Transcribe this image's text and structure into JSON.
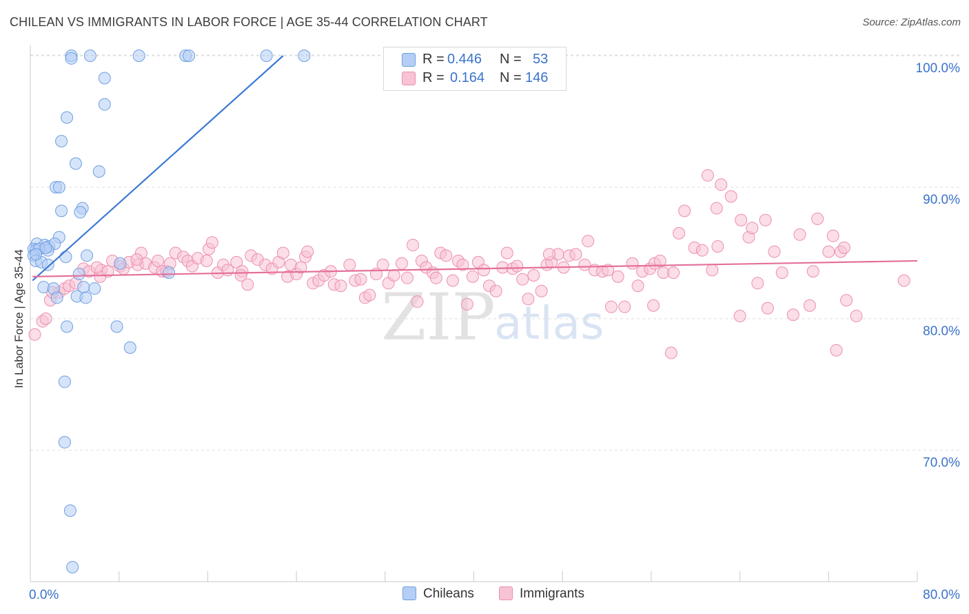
{
  "title": "CHILEAN VS IMMIGRANTS IN LABOR FORCE | AGE 35-44 CORRELATION CHART",
  "source": "Source: ZipAtlas.com",
  "watermark": {
    "zip": "ZIP",
    "atlas": "atlas"
  },
  "legend": {
    "rows": [
      {
        "r_label": "R =",
        "r_value": "0.446",
        "n_label": "N =",
        "n_value": "53",
        "color": "#b4cef5",
        "border": "#6f9ee0"
      },
      {
        "r_label": "R =",
        "r_value": "0.164",
        "n_label": "N =",
        "n_value": "146",
        "color": "#f8c3d4",
        "border": "#ec8eaf"
      }
    ]
  },
  "bottom_legend": [
    {
      "label": "Chileans",
      "color": "#b4cef5",
      "border": "#6f9ee0"
    },
    {
      "label": "Immigrants",
      "color": "#f8c3d4",
      "border": "#ec8eaf"
    }
  ],
  "chart_data": {
    "type": "scatter",
    "title": "CHILEAN VS IMMIGRANTS IN LABOR FORCE | AGE 35-44 CORRELATION CHART",
    "xlabel": "",
    "ylabel": "In Labor Force | Age 35-44",
    "xlim": [
      0,
      80
    ],
    "ylim": [
      60.5,
      101.5
    ],
    "x_tick_labels": [
      {
        "value": 0,
        "label": "0.0%"
      },
      {
        "value": 80,
        "label": "80.0%"
      }
    ],
    "y_tick_labels": [
      {
        "value": 100,
        "label": "100.0%"
      },
      {
        "value": 90,
        "label": "90.0%"
      },
      {
        "value": 80,
        "label": "80.0%"
      },
      {
        "value": 70,
        "label": "70.0%"
      }
    ],
    "x_minor_ticks": [
      0,
      8,
      16,
      24,
      32,
      40,
      48,
      56,
      64,
      72,
      80
    ],
    "grid": true,
    "series": [
      {
        "name": "Chileans",
        "color": "#6f9ee0",
        "fill": "#b4cef5",
        "trendline": {
          "x": [
            0.2,
            22.8
          ],
          "y": [
            82.9,
            100.0
          ],
          "color": "#3a78d4"
        },
        "points": [
          [
            3.7,
            100.0
          ],
          [
            5.4,
            100.0
          ],
          [
            9.8,
            100.0
          ],
          [
            14.0,
            100.0
          ],
          [
            14.3,
            100.0
          ],
          [
            21.3,
            100.0
          ],
          [
            24.7,
            100.0
          ],
          [
            3.7,
            99.8
          ],
          [
            6.7,
            98.3
          ],
          [
            6.7,
            96.3
          ],
          [
            3.3,
            95.3
          ],
          [
            2.8,
            93.5
          ],
          [
            4.1,
            91.8
          ],
          [
            6.2,
            91.2
          ],
          [
            2.3,
            90.0
          ],
          [
            2.6,
            90.0
          ],
          [
            4.7,
            88.4
          ],
          [
            2.8,
            88.2
          ],
          [
            4.5,
            88.1
          ],
          [
            2.6,
            86.2
          ],
          [
            0.6,
            85.7
          ],
          [
            1.3,
            85.6
          ],
          [
            1.7,
            85.5
          ],
          [
            2.2,
            85.7
          ],
          [
            0.3,
            85.3
          ],
          [
            0.5,
            85.2
          ],
          [
            1.6,
            85.2
          ],
          [
            0.8,
            85.3
          ],
          [
            1.4,
            85.4
          ],
          [
            0.3,
            84.8
          ],
          [
            3.2,
            84.7
          ],
          [
            5.1,
            84.8
          ],
          [
            0.5,
            84.4
          ],
          [
            1.0,
            84.3
          ],
          [
            1.6,
            84.1
          ],
          [
            8.1,
            84.2
          ],
          [
            4.4,
            83.4
          ],
          [
            12.5,
            83.5
          ],
          [
            1.2,
            82.4
          ],
          [
            2.1,
            82.3
          ],
          [
            4.8,
            82.4
          ],
          [
            5.8,
            82.3
          ],
          [
            2.4,
            81.6
          ],
          [
            4.2,
            81.7
          ],
          [
            5.0,
            81.6
          ],
          [
            3.3,
            79.4
          ],
          [
            7.8,
            79.4
          ],
          [
            9.0,
            77.8
          ],
          [
            3.1,
            75.2
          ],
          [
            3.1,
            70.6
          ],
          [
            3.6,
            65.4
          ],
          [
            3.8,
            61.1
          ],
          [
            0.5,
            84.9
          ]
        ]
      },
      {
        "name": "Immigrants",
        "color": "#ec8eaf",
        "fill": "#f8c3d4",
        "trendline": {
          "x": [
            0.2,
            80
          ],
          "y": [
            83.2,
            84.4
          ],
          "color": "#e46f9b"
        },
        "points": [
          [
            0.4,
            78.8
          ],
          [
            1.1,
            79.8
          ],
          [
            1.4,
            80.0
          ],
          [
            1.8,
            81.4
          ],
          [
            2.6,
            82.0
          ],
          [
            3.1,
            82.3
          ],
          [
            3.5,
            82.5
          ],
          [
            4.1,
            82.7
          ],
          [
            4.8,
            83.8
          ],
          [
            5.3,
            83.6
          ],
          [
            6.3,
            83.2
          ],
          [
            6.4,
            83.7
          ],
          [
            7.0,
            83.6
          ],
          [
            7.4,
            84.4
          ],
          [
            8.1,
            84.0
          ],
          [
            8.4,
            83.8
          ],
          [
            8.9,
            84.3
          ],
          [
            9.7,
            84.1
          ],
          [
            10.0,
            85.0
          ],
          [
            10.4,
            84.2
          ],
          [
            11.2,
            83.9
          ],
          [
            11.5,
            84.4
          ],
          [
            11.9,
            83.6
          ],
          [
            12.3,
            83.6
          ],
          [
            12.6,
            84.2
          ],
          [
            13.1,
            85.0
          ],
          [
            13.8,
            84.7
          ],
          [
            14.2,
            84.4
          ],
          [
            14.6,
            84.0
          ],
          [
            15.1,
            84.6
          ],
          [
            15.9,
            84.4
          ],
          [
            16.1,
            85.3
          ],
          [
            16.4,
            85.8
          ],
          [
            16.9,
            83.5
          ],
          [
            17.4,
            84.1
          ],
          [
            17.8,
            83.7
          ],
          [
            18.6,
            84.3
          ],
          [
            19.1,
            83.6
          ],
          [
            19.6,
            82.6
          ],
          [
            19.9,
            84.8
          ],
          [
            20.5,
            84.5
          ],
          [
            21.2,
            84.1
          ],
          [
            21.8,
            83.8
          ],
          [
            22.4,
            84.3
          ],
          [
            22.8,
            85.0
          ],
          [
            23.2,
            83.2
          ],
          [
            23.5,
            84.1
          ],
          [
            24.0,
            83.4
          ],
          [
            24.4,
            83.9
          ],
          [
            24.8,
            84.7
          ],
          [
            25.5,
            82.7
          ],
          [
            26.0,
            82.9
          ],
          [
            26.5,
            83.3
          ],
          [
            27.1,
            83.6
          ],
          [
            27.4,
            82.6
          ],
          [
            28.0,
            82.5
          ],
          [
            28.8,
            84.1
          ],
          [
            29.3,
            82.9
          ],
          [
            29.8,
            83.0
          ],
          [
            30.2,
            81.6
          ],
          [
            30.6,
            81.8
          ],
          [
            31.2,
            83.4
          ],
          [
            31.8,
            84.1
          ],
          [
            32.3,
            82.7
          ],
          [
            32.8,
            83.3
          ],
          [
            33.5,
            84.2
          ],
          [
            34.0,
            83.1
          ],
          [
            34.5,
            85.6
          ],
          [
            34.9,
            81.3
          ],
          [
            35.3,
            84.4
          ],
          [
            35.7,
            83.9
          ],
          [
            36.3,
            83.5
          ],
          [
            37.0,
            85.0
          ],
          [
            37.5,
            84.8
          ],
          [
            38.1,
            82.9
          ],
          [
            38.6,
            84.4
          ],
          [
            39.0,
            84.1
          ],
          [
            39.4,
            81.1
          ],
          [
            39.9,
            83.2
          ],
          [
            40.4,
            84.3
          ],
          [
            40.9,
            83.7
          ],
          [
            41.4,
            82.5
          ],
          [
            42.0,
            82.1
          ],
          [
            42.6,
            83.9
          ],
          [
            43.0,
            85.0
          ],
          [
            43.5,
            83.8
          ],
          [
            43.9,
            84.0
          ],
          [
            44.4,
            83.0
          ],
          [
            44.9,
            81.5
          ],
          [
            45.4,
            83.3
          ],
          [
            46.1,
            82.1
          ],
          [
            46.6,
            84.1
          ],
          [
            47.0,
            84.3
          ],
          [
            47.6,
            84.9
          ],
          [
            48.1,
            83.9
          ],
          [
            48.6,
            84.8
          ],
          [
            49.2,
            84.9
          ],
          [
            50.3,
            85.9
          ],
          [
            50.9,
            83.7
          ],
          [
            51.6,
            83.6
          ],
          [
            52.1,
            83.7
          ],
          [
            52.4,
            80.9
          ],
          [
            53.0,
            83.2
          ],
          [
            53.6,
            80.9
          ],
          [
            54.3,
            84.2
          ],
          [
            54.8,
            82.5
          ],
          [
            55.2,
            83.6
          ],
          [
            55.9,
            83.8
          ],
          [
            56.3,
            84.2
          ],
          [
            56.8,
            84.4
          ],
          [
            56.2,
            81.0
          ],
          [
            57.1,
            83.5
          ],
          [
            57.8,
            77.4
          ],
          [
            58.5,
            86.5
          ],
          [
            59.0,
            88.2
          ],
          [
            59.9,
            85.4
          ],
          [
            60.6,
            85.2
          ],
          [
            61.1,
            90.9
          ],
          [
            61.5,
            83.7
          ],
          [
            61.9,
            88.4
          ],
          [
            62.3,
            90.2
          ],
          [
            63.2,
            89.3
          ],
          [
            64.1,
            87.5
          ],
          [
            64.8,
            86.2
          ],
          [
            65.1,
            86.9
          ],
          [
            65.6,
            82.7
          ],
          [
            66.3,
            87.5
          ],
          [
            66.5,
            80.8
          ],
          [
            67.1,
            85.1
          ],
          [
            67.8,
            83.5
          ],
          [
            68.8,
            80.3
          ],
          [
            69.4,
            86.4
          ],
          [
            70.3,
            81.0
          ],
          [
            70.6,
            83.6
          ],
          [
            71.0,
            87.6
          ],
          [
            72.0,
            85.1
          ],
          [
            72.4,
            86.3
          ],
          [
            72.7,
            77.6
          ],
          [
            73.1,
            85.1
          ],
          [
            73.4,
            85.4
          ],
          [
            73.6,
            81.4
          ],
          [
            74.5,
            80.2
          ],
          [
            78.8,
            82.9
          ],
          [
            64.0,
            80.2
          ],
          [
            62.0,
            85.5
          ],
          [
            58.0,
            83.5
          ],
          [
            50.0,
            84.1
          ],
          [
            46.8,
            84.9
          ],
          [
            36.6,
            83.1
          ],
          [
            25.0,
            85.1
          ],
          [
            19.0,
            83.3
          ],
          [
            9.6,
            84.5
          ],
          [
            6.0,
            83.9
          ],
          [
            2.0,
            82.0
          ]
        ]
      }
    ]
  }
}
